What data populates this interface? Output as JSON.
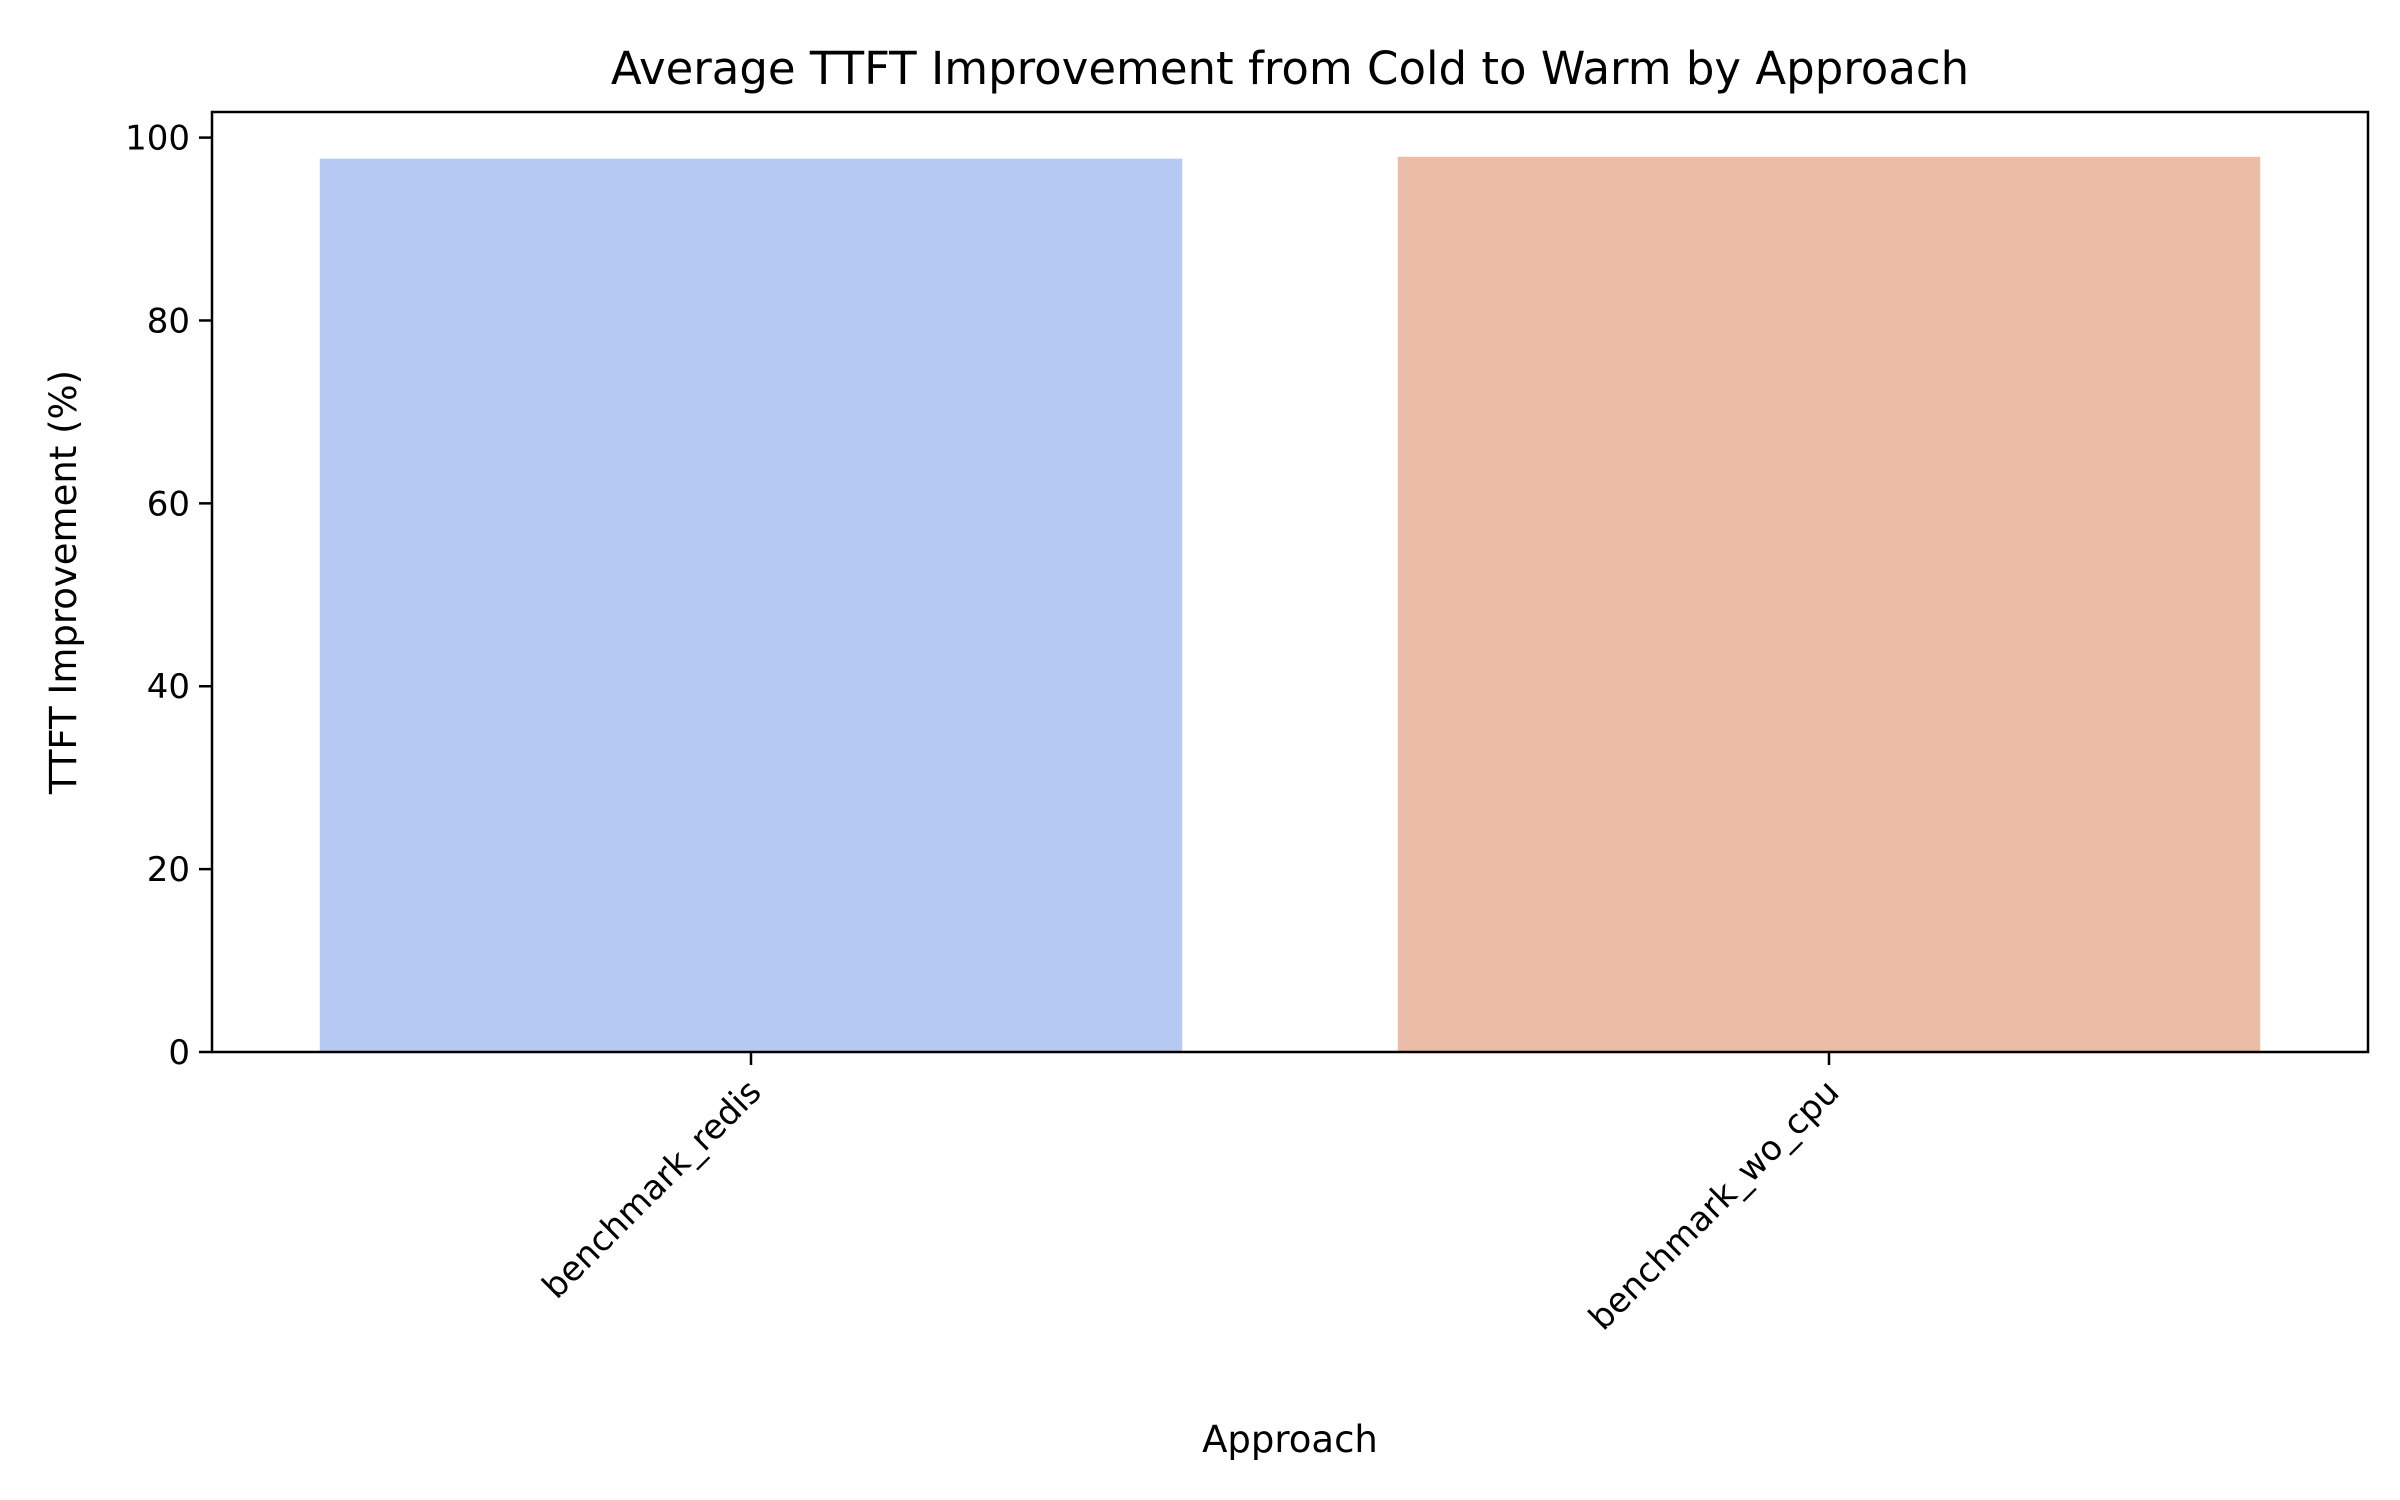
{
  "chart_data": {
    "type": "bar",
    "title": "Average TTFT Improvement from Cold to Warm by Approach",
    "xlabel": "Approach",
    "ylabel": "TTFT Improvement (%)",
    "categories": [
      "benchmark_redis",
      "benchmark_wo_cpu"
    ],
    "values": [
      97.7,
      97.9
    ],
    "colors": [
      "#b5c9f2",
      "#ebbca6"
    ],
    "ylim": [
      0,
      102.8
    ],
    "yticks": [
      0,
      20,
      40,
      60,
      80,
      100
    ],
    "grid": false,
    "legend": "none"
  }
}
